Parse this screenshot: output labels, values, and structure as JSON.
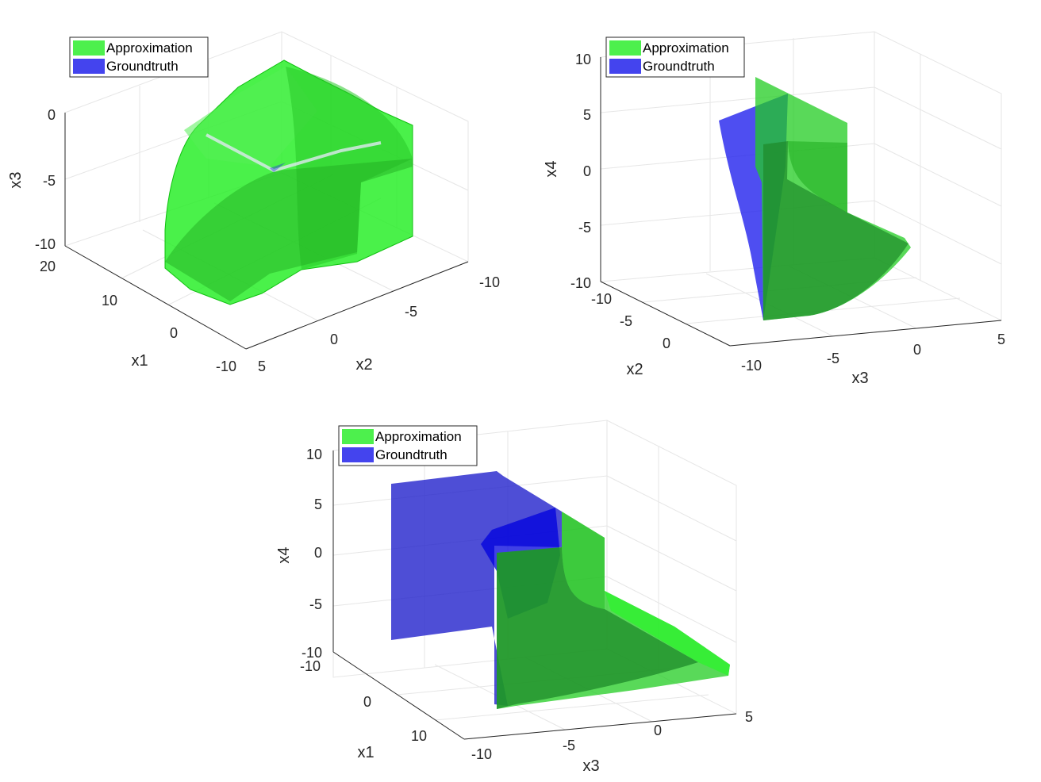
{
  "legend": {
    "approx_label": "Approximation",
    "ground_label": "Groundtruth"
  },
  "colors": {
    "approximation": "#22dd22",
    "groundtruth": "#2222ee",
    "text": "#262626",
    "grid": "#e6e6e6"
  },
  "chart_data": [
    {
      "type": "surface3d",
      "axes": {
        "x": {
          "label": "x1",
          "range": [
            -10,
            20
          ],
          "ticks": [
            "-10",
            "0",
            "10",
            "20"
          ]
        },
        "y": {
          "label": "x2",
          "range": [
            -10,
            5
          ],
          "ticks": [
            "5",
            "0",
            "-5",
            "-10"
          ]
        },
        "z": {
          "label": "x3",
          "range": [
            -10,
            0
          ],
          "ticks": [
            "-10",
            "-5",
            "0"
          ]
        }
      },
      "series": [
        {
          "name": "Approximation"
        },
        {
          "name": "Groundtruth"
        }
      ],
      "legend_position": "top-left",
      "grid": true
    },
    {
      "type": "surface3d",
      "axes": {
        "x": {
          "label": "x2",
          "range": [
            -10,
            0
          ],
          "ticks": [
            "-10",
            "-5",
            "0"
          ]
        },
        "y": {
          "label": "x3",
          "range": [
            -10,
            5
          ],
          "ticks": [
            "-10",
            "-5",
            "0",
            "5"
          ]
        },
        "z": {
          "label": "x4",
          "range": [
            -10,
            10
          ],
          "ticks": [
            "-10",
            "-5",
            "0",
            "5",
            "10"
          ]
        }
      },
      "series": [
        {
          "name": "Approximation"
        },
        {
          "name": "Groundtruth"
        }
      ],
      "legend_position": "top-left",
      "grid": true
    },
    {
      "type": "surface3d",
      "axes": {
        "x": {
          "label": "x1",
          "range": [
            -10,
            10
          ],
          "ticks": [
            "-10",
            "0",
            "10"
          ]
        },
        "y": {
          "label": "x3",
          "range": [
            -10,
            5
          ],
          "ticks": [
            "-10",
            "-5",
            "0",
            "5"
          ]
        },
        "z": {
          "label": "x4",
          "range": [
            -10,
            10
          ],
          "ticks": [
            "-10",
            "-5",
            "0",
            "5",
            "10"
          ]
        }
      },
      "series": [
        {
          "name": "Approximation"
        },
        {
          "name": "Groundtruth"
        }
      ],
      "legend_position": "top-left",
      "grid": true
    }
  ]
}
